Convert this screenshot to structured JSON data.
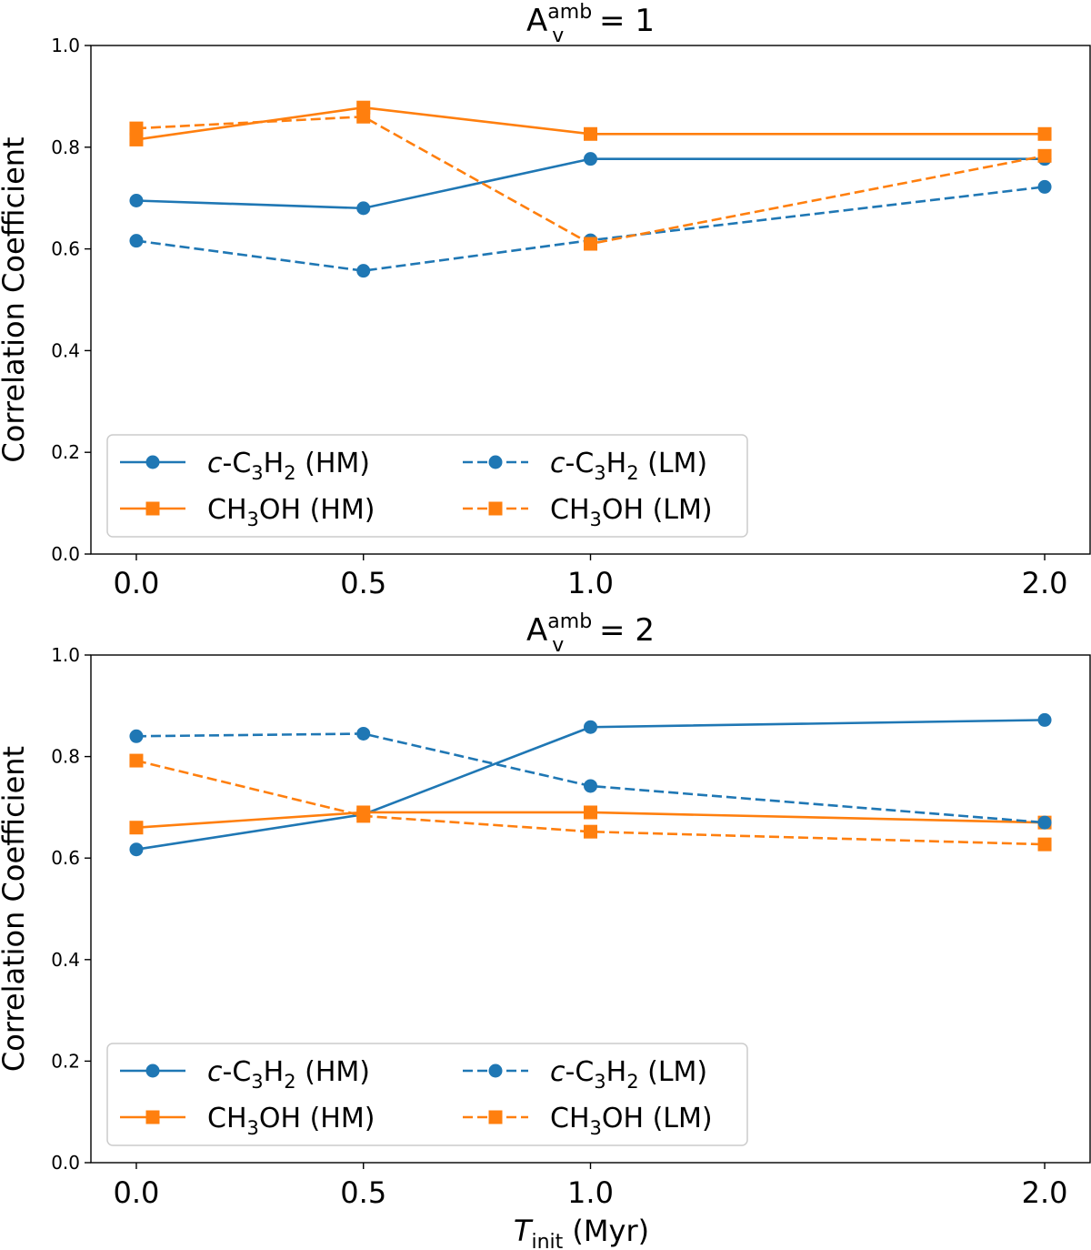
{
  "chart_data": [
    {
      "type": "line",
      "title": "A_v^amb = 1",
      "title_base": "A",
      "title_sup": "amb",
      "title_sub": "v",
      "title_rest": " = 1",
      "xlabel": "",
      "ylabel": "Correlation Coefficient",
      "x": [
        0.0,
        0.5,
        1.0,
        2.0
      ],
      "xtick_labels": [
        "0.0",
        "0.5",
        "1.0",
        "2.0"
      ],
      "ylim": [
        0.0,
        1.0
      ],
      "yticks": [
        0.0,
        0.2,
        0.4,
        0.6,
        0.8,
        1.0
      ],
      "ytick_labels": [
        "0.0",
        "0.2",
        "0.4",
        "0.6",
        "0.8",
        "1.0"
      ],
      "legend_location": "lower-left",
      "series": [
        {
          "name": "c-C3H2 (HM)",
          "label_italic": "c",
          "label_main": "-C",
          "label_sub1": "3",
          "label_mid": "H",
          "label_sub2": "2",
          "label_tail": " (HM)",
          "color": "#1f77b4",
          "marker": "circle",
          "linestyle": "solid",
          "values": [
            0.695,
            0.68,
            0.777,
            0.777
          ]
        },
        {
          "name": "CH3OH (HM)",
          "label_italic": "",
          "label_main": "CH",
          "label_sub1": "3",
          "label_mid": "OH",
          "label_sub2": "",
          "label_tail": " (HM)",
          "color": "#ff7f0e",
          "marker": "square",
          "linestyle": "solid",
          "values": [
            0.815,
            0.878,
            0.826,
            0.826
          ]
        },
        {
          "name": "c-C3H2 (LM)",
          "label_italic": "c",
          "label_main": "-C",
          "label_sub1": "3",
          "label_mid": "H",
          "label_sub2": "2",
          "label_tail": " (LM)",
          "color": "#1f77b4",
          "marker": "circle",
          "linestyle": "dashed",
          "values": [
            0.616,
            0.557,
            0.617,
            0.722
          ]
        },
        {
          "name": "CH3OH (LM)",
          "label_italic": "",
          "label_main": "CH",
          "label_sub1": "3",
          "label_mid": "OH",
          "label_sub2": "",
          "label_tail": " (LM)",
          "color": "#ff7f0e",
          "marker": "square",
          "linestyle": "dashed",
          "values": [
            0.837,
            0.86,
            0.61,
            0.783
          ]
        }
      ]
    },
    {
      "type": "line",
      "title": "A_v^amb = 2",
      "title_base": "A",
      "title_sup": "amb",
      "title_sub": "v",
      "title_rest": " = 2",
      "xlabel": "T_init (Myr)",
      "xlabel_main": "T",
      "xlabel_sub": "init",
      "xlabel_rest": " (Myr)",
      "ylabel": "Correlation Coefficient",
      "x": [
        0.0,
        0.5,
        1.0,
        2.0
      ],
      "xtick_labels": [
        "0.0",
        "0.5",
        "1.0",
        "2.0"
      ],
      "ylim": [
        0.0,
        1.0
      ],
      "yticks": [
        0.0,
        0.2,
        0.4,
        0.6,
        0.8,
        1.0
      ],
      "ytick_labels": [
        "0.0",
        "0.2",
        "0.4",
        "0.6",
        "0.8",
        "1.0"
      ],
      "legend_location": "lower-left",
      "series": [
        {
          "name": "c-C3H2 (HM)",
          "label_italic": "c",
          "label_main": "-C",
          "label_sub1": "3",
          "label_mid": "H",
          "label_sub2": "2",
          "label_tail": " (HM)",
          "color": "#1f77b4",
          "marker": "circle",
          "linestyle": "solid",
          "values": [
            0.617,
            0.686,
            0.858,
            0.872
          ]
        },
        {
          "name": "CH3OH (HM)",
          "label_italic": "",
          "label_main": "CH",
          "label_sub1": "3",
          "label_mid": "OH",
          "label_sub2": "",
          "label_tail": " (HM)",
          "color": "#ff7f0e",
          "marker": "square",
          "linestyle": "solid",
          "values": [
            0.66,
            0.69,
            0.69,
            0.67
          ]
        },
        {
          "name": "c-C3H2 (LM)",
          "label_italic": "c",
          "label_main": "-C",
          "label_sub1": "3",
          "label_mid": "H",
          "label_sub2": "2",
          "label_tail": " (LM)",
          "color": "#1f77b4",
          "marker": "circle",
          "linestyle": "dashed",
          "values": [
            0.84,
            0.845,
            0.742,
            0.67
          ]
        },
        {
          "name": "CH3OH (LM)",
          "label_italic": "",
          "label_main": "CH",
          "label_sub1": "3",
          "label_mid": "OH",
          "label_sub2": "",
          "label_tail": " (LM)",
          "color": "#ff7f0e",
          "marker": "square",
          "linestyle": "dashed",
          "values": [
            0.792,
            0.683,
            0.652,
            0.627
          ]
        }
      ]
    }
  ]
}
